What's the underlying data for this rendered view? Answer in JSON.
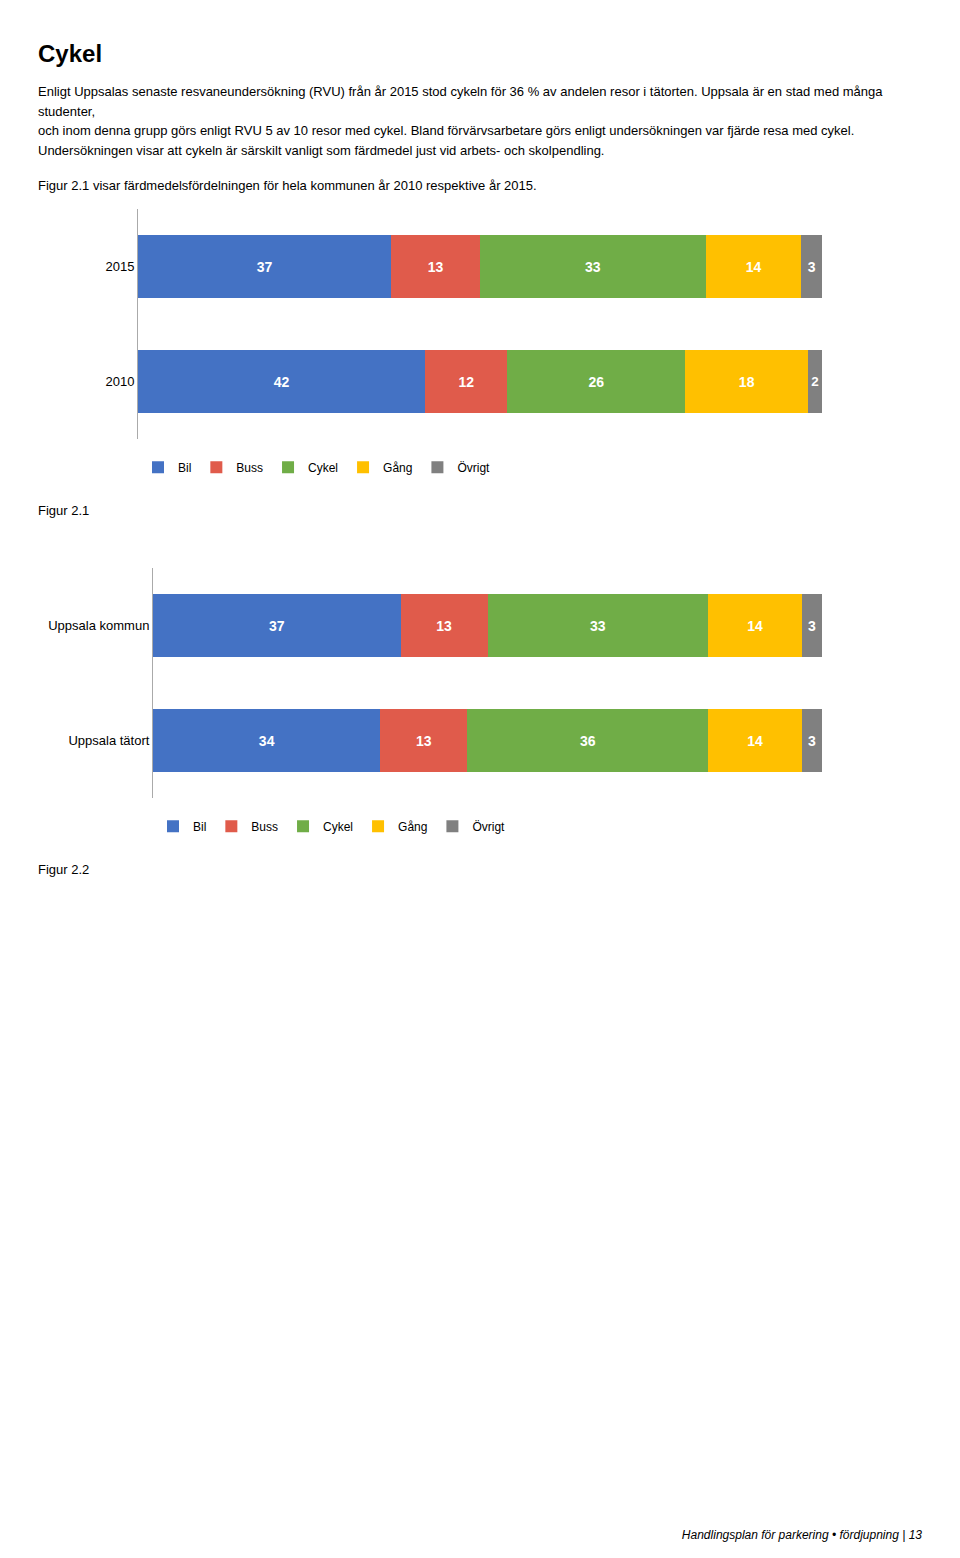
{
  "chart_data": [
    {
      "type": "bar",
      "orientation": "horizontal",
      "stacked": true,
      "data_labels": true,
      "tick_labels": "y",
      "grid": false,
      "legend": "bottom",
      "title": "Cykel",
      "subtitle": "Enligt Uppsalas senaste resvaneundersökning (RVU) från år 2015 stod cykeln för 36 % av andelen resor i tätorten. Uppsala är en stad med många studenter,\noch inom denna grupp görs enligt RVU 5 av 10 resor med cykel. Bland förvärvsarbetare görs enligt undersökningen var fjärde resa med cykel.\nUndersökningen visar att cykeln är särskilt vanligt som färdmedel just vid arbets- och skolpendling.",
      "annotations": [
        "Figur 2.1 visar färdmedelsfördelningen för hela kommunen år 2010 respektive år 2015.",
        "Figur 2.1"
      ],
      "categories": [
        "2015",
        "2010"
      ],
      "xlim": [
        0,
        100
      ],
      "series": [
        {
          "name": "Bil",
          "color": "#4472C4",
          "values": [
            37,
            42
          ]
        },
        {
          "name": "Buss",
          "color": "#E05B4B",
          "values": [
            13,
            12
          ]
        },
        {
          "name": "Cykel",
          "color": "#70AD47",
          "values": [
            33,
            26
          ]
        },
        {
          "name": "Gång",
          "color": "#FFC000",
          "values": [
            14,
            18
          ]
        },
        {
          "name": "Övrigt",
          "color": "#808080",
          "values": [
            3,
            2
          ]
        }
      ]
    },
    {
      "type": "bar",
      "orientation": "horizontal",
      "stacked": true,
      "data_labels": true,
      "tick_labels": "y",
      "grid": false,
      "legend": "bottom",
      "annotations": [
        "Figur 2.2",
        "Handlingsplan för parkering • fördjupning  |  13"
      ],
      "categories": [
        "Uppsala kommun",
        "Uppsala tätort"
      ],
      "xlim": [
        0,
        100
      ],
      "series": [
        {
          "name": "Bil",
          "color": "#4472C4",
          "values": [
            37,
            34
          ]
        },
        {
          "name": "Buss",
          "color": "#E05B4B",
          "values": [
            13,
            13
          ]
        },
        {
          "name": "Cykel",
          "color": "#70AD47",
          "values": [
            33,
            36
          ]
        },
        {
          "name": "Gång",
          "color": "#FFC000",
          "values": [
            14,
            14
          ]
        },
        {
          "name": "Övrigt",
          "color": "#808080",
          "values": [
            3,
            3
          ]
        }
      ]
    }
  ]
}
